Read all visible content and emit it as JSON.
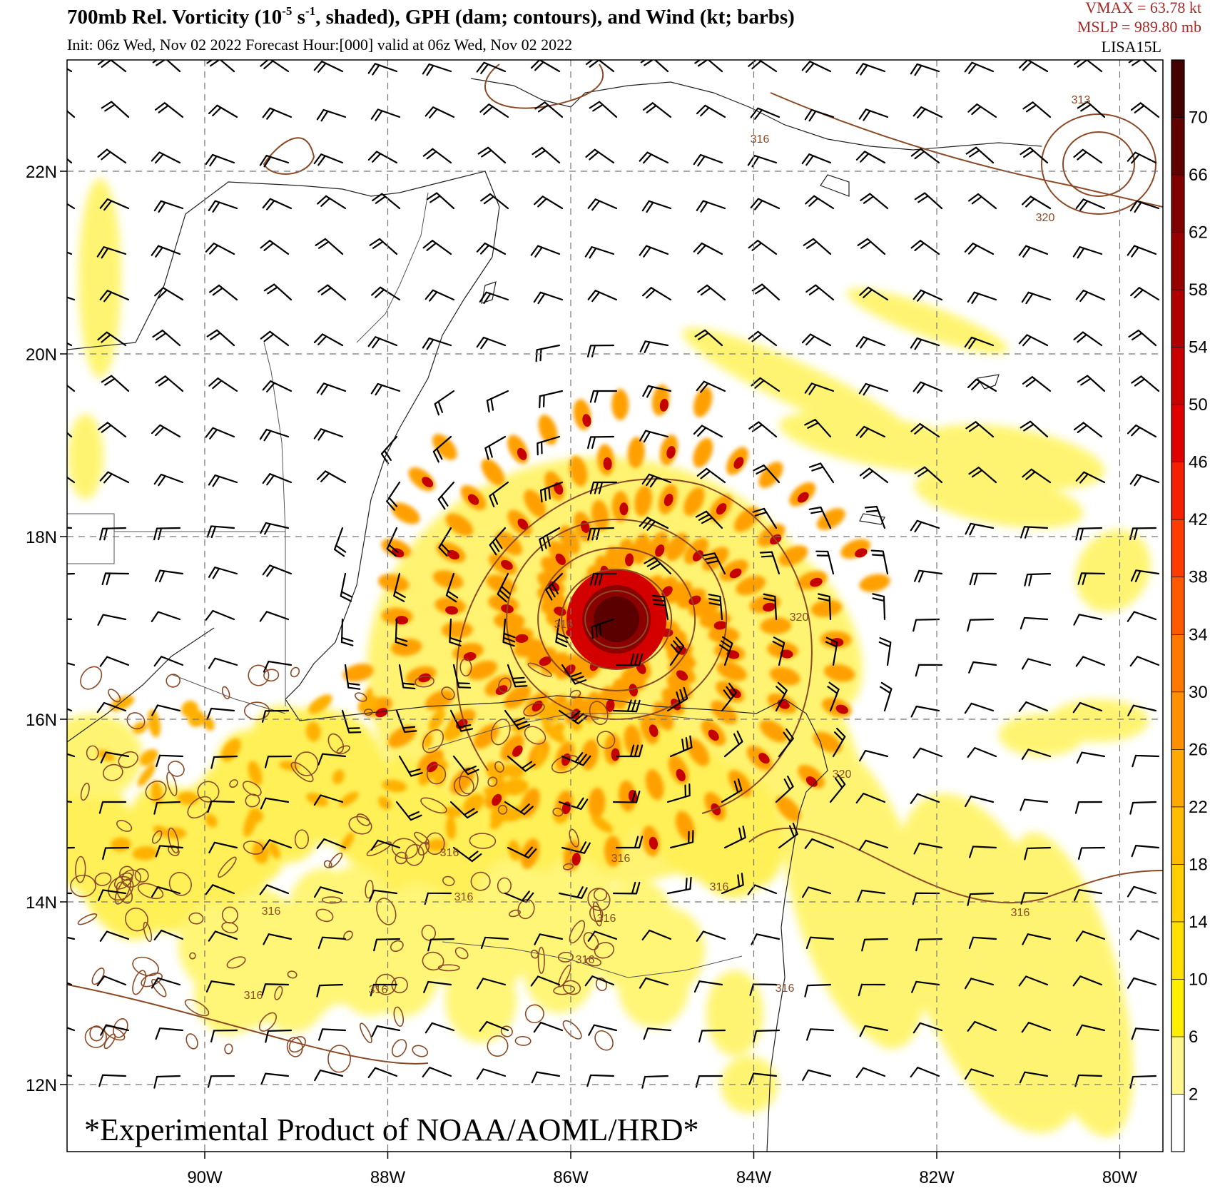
{
  "header": {
    "title_prefix": "700mb  Rel. Vorticity (10",
    "title_exp1": "-5",
    "title_mid": " s",
    "title_exp2": "-1",
    "title_suffix": ", shaded), GPH (dam; contours), and Wind (kt; barbs)",
    "subtitle": "Init: 06z Wed, Nov 02 2022  Forecast Hour:[000]  valid at 06z Wed, Nov 02 2022",
    "vmax": "VMAX =   63.78 kt",
    "mslp": "MSLP =  989.80 mb",
    "storm": "LISA15L"
  },
  "watermark": "*Experimental Product of NOAA/AOML/HRD*",
  "map": {
    "lon_ticks": [
      "90W",
      "88W",
      "86W",
      "84W",
      "82W",
      "80W"
    ],
    "lat_ticks": [
      "22N",
      "20N",
      "18N",
      "16N",
      "14N",
      "12N"
    ],
    "lon_values": [
      -90,
      -88,
      -86,
      -84,
      -82,
      -80
    ],
    "lat_values": [
      22,
      20,
      18,
      16,
      14,
      12
    ],
    "contour_labels": [
      "316",
      "316",
      "316",
      "316",
      "316",
      "316",
      "316",
      "316",
      "316",
      "316",
      "316",
      "316",
      "320",
      "320",
      "320",
      "313",
      "316"
    ],
    "storm_center": {
      "lon": -85.5,
      "lat": 17.0
    }
  },
  "colorbar": {
    "labels": [
      "70",
      "66",
      "62",
      "58",
      "54",
      "50",
      "46",
      "42",
      "38",
      "34",
      "30",
      "26",
      "22",
      "18",
      "14",
      "10",
      "6",
      "2"
    ],
    "colors": [
      "#ffffff",
      "#fff68f",
      "#ffee00",
      "#ffe000",
      "#ffcf00",
      "#ffbc00",
      "#ffa800",
      "#ff9000",
      "#ff7800",
      "#ff5a00",
      "#ff3c00",
      "#f52000",
      "#e00000",
      "#c80000",
      "#b00000",
      "#980000",
      "#800000",
      "#600000",
      "#440000"
    ],
    "contour_color": "#8b4a25",
    "barb_color": "#000000"
  }
}
